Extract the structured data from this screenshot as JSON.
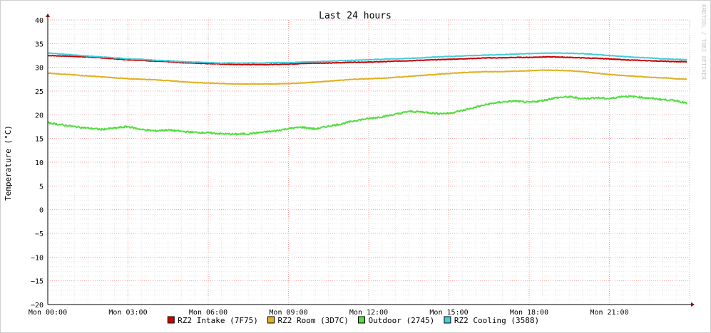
{
  "watermark": "RRDTOOL / TOBI OETIKER",
  "colors": {
    "background": "#ffffff",
    "grid_minor": "#e6e6e6",
    "grid_major": "#f0a0a0",
    "axis": "#000000",
    "arrow": "#8b0000"
  },
  "chart_data": {
    "type": "line",
    "title": "Last 24 hours",
    "xlabel": "",
    "ylabel": "Temperature (°C)",
    "xlim": [
      0,
      24
    ],
    "ylim": [
      -20,
      40
    ],
    "x_ticks": [
      {
        "hour": 0,
        "label": "Mon 00:00"
      },
      {
        "hour": 3,
        "label": "Mon 03:00"
      },
      {
        "hour": 6,
        "label": "Mon 06:00"
      },
      {
        "hour": 9,
        "label": "Mon 09:00"
      },
      {
        "hour": 12,
        "label": "Mon 12:00"
      },
      {
        "hour": 15,
        "label": "Mon 15:00"
      },
      {
        "hour": 18,
        "label": "Mon 18:00"
      },
      {
        "hour": 21,
        "label": "Mon 21:00"
      }
    ],
    "y_ticks": [
      -20,
      -15,
      -10,
      -5,
      0,
      5,
      10,
      15,
      20,
      25,
      30,
      35,
      40
    ],
    "grid": true,
    "legend_position": "bottom",
    "x": [
      0,
      0.5,
      1,
      1.5,
      2,
      2.5,
      3,
      3.5,
      4,
      4.5,
      5,
      5.5,
      6,
      6.5,
      7,
      7.5,
      8,
      8.5,
      9,
      9.5,
      10,
      10.5,
      11,
      11.5,
      12,
      12.5,
      13,
      13.5,
      14,
      14.5,
      15,
      15.5,
      16,
      16.5,
      17,
      17.5,
      18,
      18.5,
      19,
      19.5,
      20,
      20.5,
      21,
      21.5,
      22,
      22.5,
      23,
      23.5,
      23.9
    ],
    "series": [
      {
        "name": "RZ2 Intake (7F75)",
        "color": "#cc0000",
        "values": [
          32.5,
          32.4,
          32.3,
          32.2,
          32.0,
          31.8,
          31.6,
          31.5,
          31.3,
          31.2,
          31.0,
          30.9,
          30.8,
          30.7,
          30.6,
          30.6,
          30.6,
          30.6,
          30.7,
          30.8,
          30.9,
          30.9,
          31.0,
          31.1,
          31.1,
          31.2,
          31.3,
          31.4,
          31.5,
          31.6,
          31.7,
          31.8,
          31.9,
          32.0,
          32.0,
          32.1,
          32.1,
          32.2,
          32.2,
          32.1,
          32.0,
          31.9,
          31.8,
          31.6,
          31.5,
          31.4,
          31.3,
          31.2,
          31.2
        ]
      },
      {
        "name": "RZ2 Room (3D7C)",
        "color": "#e0b020",
        "values": [
          28.8,
          28.6,
          28.4,
          28.2,
          28.0,
          27.8,
          27.6,
          27.5,
          27.4,
          27.2,
          27.0,
          26.8,
          26.7,
          26.6,
          26.5,
          26.5,
          26.5,
          26.5,
          26.6,
          26.7,
          26.9,
          27.1,
          27.3,
          27.5,
          27.6,
          27.7,
          27.9,
          28.1,
          28.3,
          28.5,
          28.7,
          28.9,
          29.0,
          29.1,
          29.1,
          29.2,
          29.3,
          29.4,
          29.4,
          29.3,
          29.1,
          28.8,
          28.5,
          28.3,
          28.1,
          27.9,
          27.8,
          27.6,
          27.5
        ]
      },
      {
        "name": "Outdoor (2745)",
        "color": "#55dd44",
        "values": [
          18.3,
          17.9,
          17.5,
          17.2,
          16.9,
          17.2,
          17.5,
          16.9,
          16.6,
          16.8,
          16.5,
          16.3,
          16.2,
          16.0,
          15.9,
          16.0,
          16.3,
          16.6,
          17.1,
          17.4,
          17.0,
          17.6,
          18.1,
          18.8,
          19.2,
          19.6,
          20.1,
          20.7,
          20.6,
          20.3,
          20.3,
          20.9,
          21.6,
          22.3,
          22.7,
          22.9,
          22.6,
          23.0,
          23.6,
          23.8,
          23.4,
          23.6,
          23.4,
          23.9,
          23.8,
          23.5,
          23.2,
          23.0,
          22.4
        ]
      },
      {
        "name": "RZ2 Cooling (3588)",
        "color": "#44ccdd",
        "values": [
          33.0,
          32.8,
          32.6,
          32.4,
          32.2,
          32.0,
          31.8,
          31.7,
          31.5,
          31.4,
          31.2,
          31.1,
          31.0,
          30.9,
          30.9,
          30.9,
          30.9,
          31.0,
          31.0,
          31.1,
          31.2,
          31.3,
          31.4,
          31.5,
          31.6,
          31.7,
          31.8,
          31.9,
          32.0,
          32.2,
          32.3,
          32.4,
          32.5,
          32.6,
          32.7,
          32.8,
          32.9,
          33.0,
          33.0,
          33.0,
          32.9,
          32.7,
          32.5,
          32.3,
          32.1,
          32.0,
          31.8,
          31.7,
          31.6
        ]
      }
    ]
  }
}
